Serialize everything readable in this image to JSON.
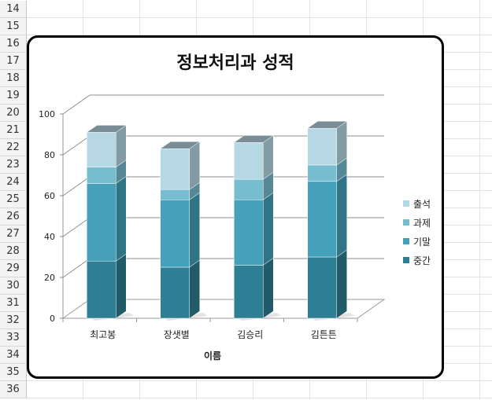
{
  "sheet": {
    "row_numbers": [
      "14",
      "15",
      "16",
      "17",
      "18",
      "19",
      "20",
      "21",
      "22",
      "23",
      "24",
      "25",
      "26",
      "27",
      "28",
      "29",
      "30",
      "31",
      "32",
      "33",
      "34",
      "35",
      "36"
    ]
  },
  "chart_data": {
    "type": "bar",
    "stacked": true,
    "title": "정보처리과 성적",
    "xlabel": "이름",
    "ylabel": "",
    "ylim": [
      0,
      100
    ],
    "yticks": [
      0,
      20,
      40,
      60,
      80,
      100
    ],
    "categories": [
      "최고봉",
      "장샛별",
      "김승리",
      "김튼튼"
    ],
    "series": [
      {
        "name": "중간",
        "values": [
          28,
          25,
          26,
          30
        ],
        "color": "#2e7f93"
      },
      {
        "name": "기말",
        "values": [
          38,
          33,
          32,
          37
        ],
        "color": "#44a1b9"
      },
      {
        "name": "과제",
        "values": [
          8,
          5,
          10,
          8
        ],
        "color": "#77bdd0"
      },
      {
        "name": "출석",
        "values": [
          17,
          20,
          18,
          18
        ],
        "color": "#b6d8e4"
      }
    ],
    "legend_position": "right",
    "legend_order": [
      "출석",
      "과제",
      "기말",
      "중간"
    ],
    "grid": true
  }
}
